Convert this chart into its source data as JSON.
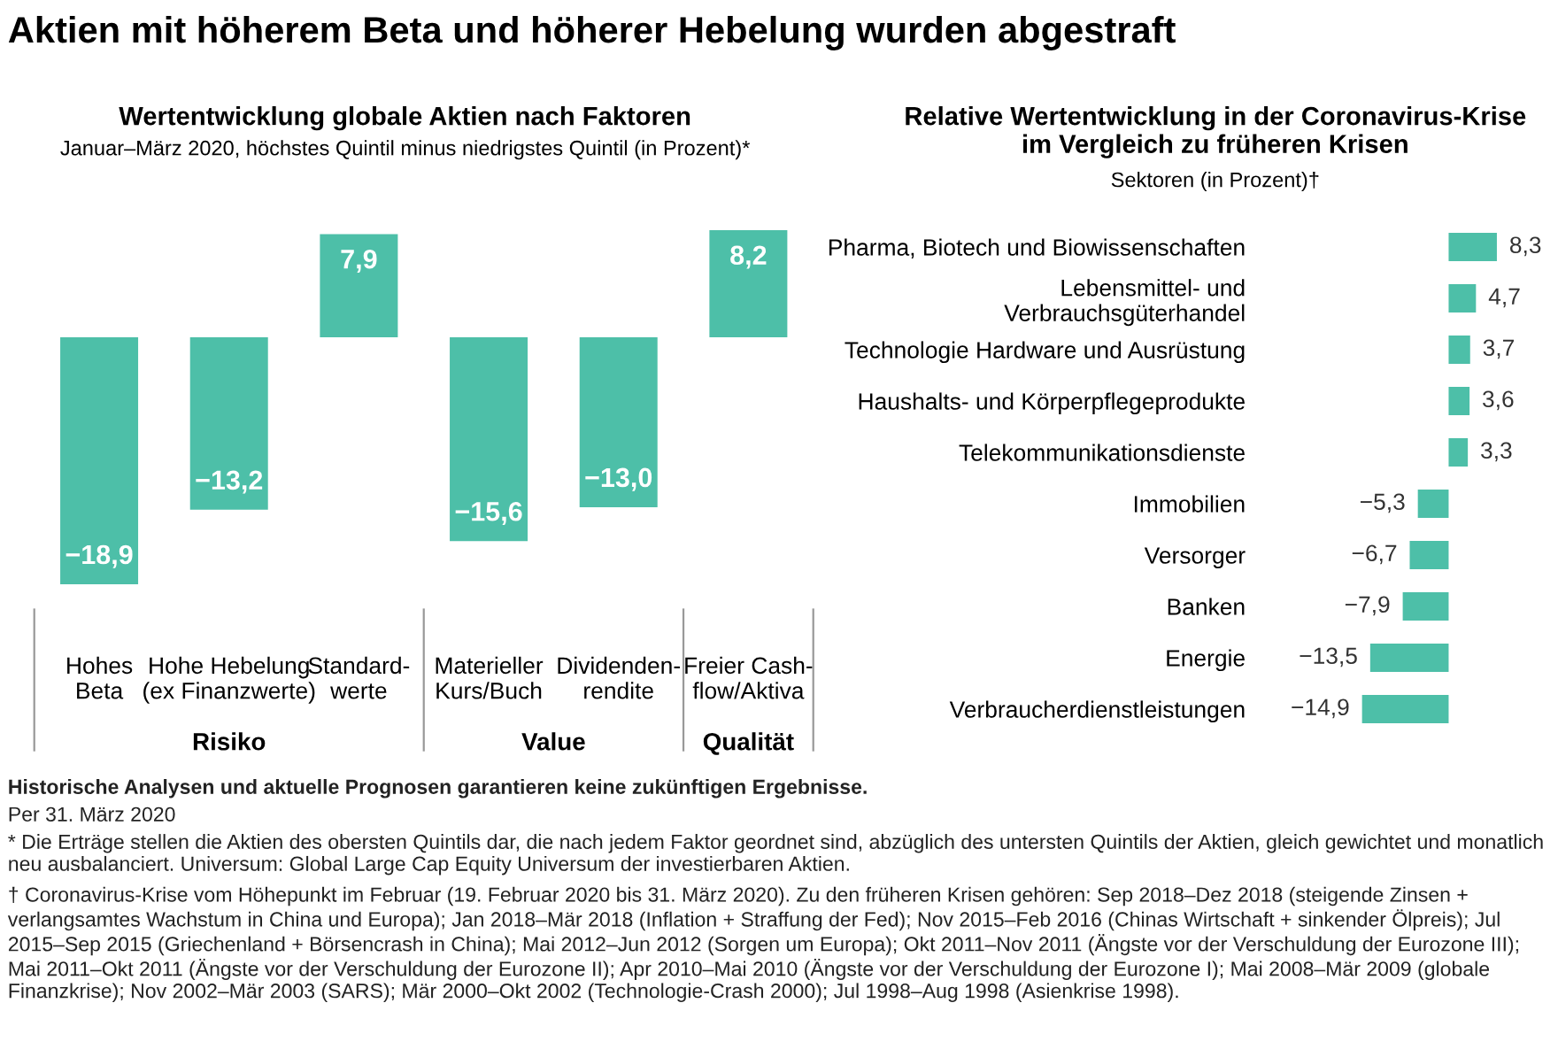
{
  "chart_data": [
    {
      "type": "bar",
      "title": "Wertentwicklung globale Aktien nach Faktoren",
      "subtitle": "Januar–März 2020, höchstes Quintil minus niedrigstes Quintil (in Prozent)*",
      "categories": [
        "Hohes\nBeta",
        "Hohe Hebelung\n(ex Finanzwerte)",
        "Standard-\nwerte",
        "Materieller\nKurs/Buch",
        "Dividenden-\nrendite",
        "Freier Cash-\nflow/Aktiva"
      ],
      "values": [
        -18.9,
        -13.2,
        7.9,
        -15.6,
        -13.0,
        8.2
      ],
      "value_labels": [
        "−18,9",
        "−13,2",
        "7,9",
        "−15,6",
        "−13,0",
        "8,2"
      ],
      "color": "#4dbfa8",
      "annotations": [
        "Risiko",
        "Value",
        "Qualität"
      ]
    },
    {
      "type": "bar",
      "orientation": "horizontal",
      "title": "Relative Wertentwicklung in der Coronavirus-Krise\nim Vergleich zu früheren Krisen",
      "subtitle": "Sektoren (in Prozent)†",
      "categories": [
        "Pharma, Biotech und Biowissenschaften",
        "Lebensmittel- und\nVerbrauchsgüterhandel",
        "Technologie Hardware und Ausrüstung",
        "Haushalts- und Körperpflegeprodukte",
        "Telekommunikationsdienste",
        "Immobilien",
        "Versorger",
        "Banken",
        "Energie",
        "Verbraucherdienstleistungen"
      ],
      "values": [
        8.3,
        4.7,
        3.7,
        3.6,
        3.3,
        -5.3,
        -6.7,
        -7.9,
        -13.5,
        -14.9
      ],
      "value_labels": [
        "8,3",
        "4,7",
        "3,7",
        "3,6",
        "3,3",
        "−5,3",
        "−6,7",
        "−7,9",
        "−13,5",
        "−14,9"
      ],
      "color": "#4dbfa8"
    },
    {
      "type": "other",
      "title": "Aktien mit höherem Beta und höherer Hebelung wurden abgestraft",
      "annotations": [
        "Historische Analysen und aktuelle Prognosen garantieren keine zukünftigen Ergebnisse.",
        "Per 31. März 2020",
        "* Die Erträge stellen die Aktien des obersten Quintils dar, die nach jedem Faktor geordnet sind, abzüglich des untersten Quintils der Aktien, gleich gewichtet und monatlich neu ausbalanciert. Universum: Global Large Cap Equity Universum der investierbaren Aktien.",
        "† Coronavirus-Krise vom Höhepunkt im Februar (19. Februar 2020 bis 31. März 2020). Zu den früheren Krisen gehören: Sep 2018–Dez 2018 (steigende Zinsen + verlangsamtes Wachstum in China und Europa); Jan 2018–Mär 2018 (Inflation + Straffung der Fed); Nov 2015–Feb 2016 (Chinas Wirtschaft + sinkender Ölpreis); Jul 2015–Sep 2015 (Griechenland + Börsencrash in China); Mai 2012–Jun 2012 (Sorgen um Europa); Okt 2011–Nov 2011 (Ängste vor der Verschuldung der Eurozone III); Mai 2011–Okt 2011 (Ängste vor der Verschuldung der Eurozone II); Apr 2010–Mai 2010 (Ängste vor der Verschuldung der Eurozone I); Mai 2008–Mär 2009 (globale Finanzkrise); Nov 2002–Mär 2003 (SARS); Mär 2000–Okt 2002 (Technologie-Crash 2000); Jul 1998–Aug 1998 (Asienkrise 1998)."
      ]
    }
  ]
}
